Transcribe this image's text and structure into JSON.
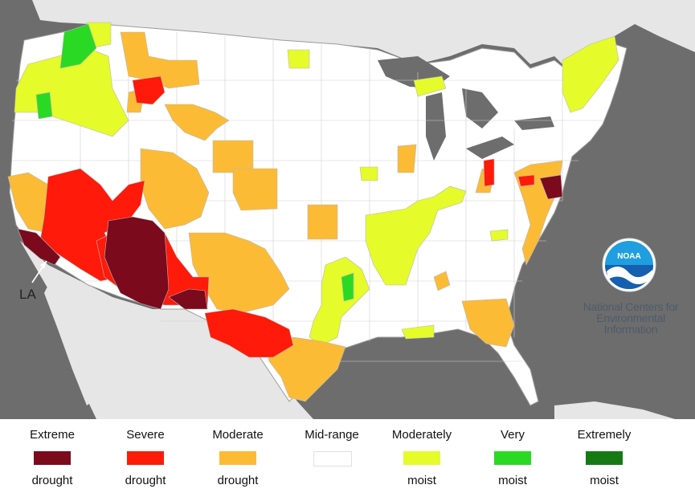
{
  "map": {
    "annotation_la": "LA",
    "logo": {
      "emblem_text": "NOAA",
      "line1": "National Centers for",
      "line2": "Environmental",
      "line3": "Information"
    }
  },
  "legend": [
    {
      "top": "Extreme",
      "bottom": "drought",
      "color": "#7a0a1c"
    },
    {
      "top": "Severe",
      "bottom": "drought",
      "color": "#ff1a0a"
    },
    {
      "top": "Moderate",
      "bottom": "drought",
      "color": "#fbbb35"
    },
    {
      "top": "Mid-range",
      "bottom": "",
      "color": "#ffffff"
    },
    {
      "top": "Moderately",
      "bottom": "moist",
      "color": "#e5fb2a"
    },
    {
      "top": "Very",
      "bottom": "moist",
      "color": "#2ad924"
    },
    {
      "top": "Extremely",
      "bottom": "moist",
      "color": "#157a13"
    }
  ]
}
